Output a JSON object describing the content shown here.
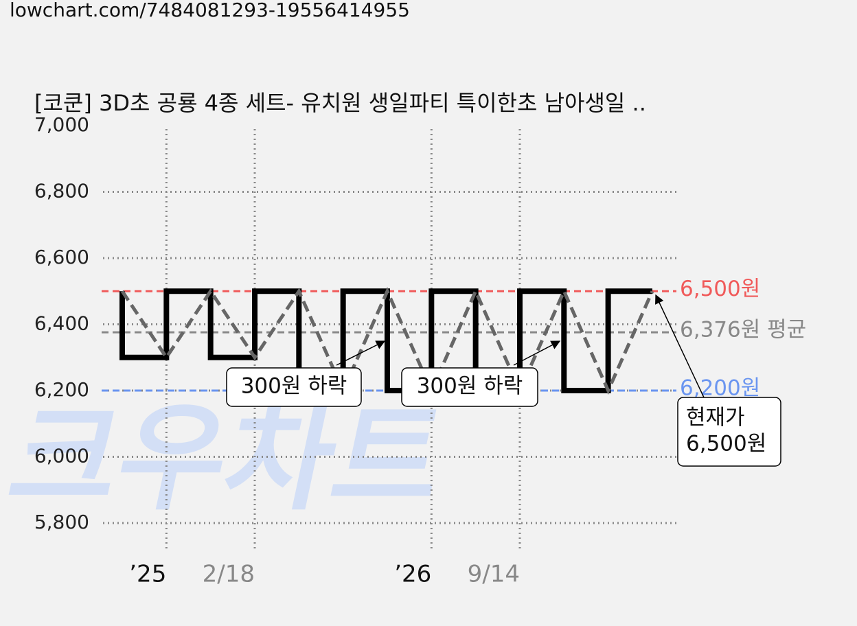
{
  "url": "lowchart.com/7484081293-19556414955",
  "chart_data": {
    "type": "line",
    "title": "[코쿤] 3D초 공룡 4종 세트- 유치원 생일파티 특이한초 남아생일 ..",
    "watermark": "크우차트",
    "categories": [
      null,
      "’25",
      null,
      "2/18",
      null,
      null,
      null,
      "’26",
      null,
      "9/14",
      null,
      null,
      null
    ],
    "series": [
      {
        "color": "#000000",
        "connector_color": "#666666",
        "values": [
          6500,
          6300,
          6500,
          6300,
          6500,
          6200,
          6500,
          6200,
          6500,
          6200,
          6500,
          6200,
          6500
        ]
      }
    ],
    "ylim": [
      5700,
      7000
    ],
    "yticks": [
      {
        "value": 5800,
        "label": "5,800"
      },
      {
        "value": 6000,
        "label": "6,000"
      },
      {
        "value": 6200,
        "label": "6,200"
      },
      {
        "value": 6400,
        "label": "6,400"
      },
      {
        "value": 6600,
        "label": "6,600"
      },
      {
        "value": 6800,
        "label": "6,800"
      },
      {
        "value": 7000,
        "label": "7,000"
      }
    ],
    "grid": true,
    "reference_lines": [
      {
        "value": 6500,
        "label": "6,500원",
        "color": "#f05a5a"
      },
      {
        "value": 6376,
        "label": "6,376원 평균",
        "color": "#888888"
      },
      {
        "value": 6200,
        "label": "6,200원",
        "color": "#6a95f0"
      }
    ],
    "annotations": [
      {
        "lines": [
          "300원 하락"
        ]
      },
      {
        "lines": [
          "300원 하락"
        ]
      },
      {
        "lines": [
          "현재가",
          "6,500원"
        ]
      }
    ]
  }
}
